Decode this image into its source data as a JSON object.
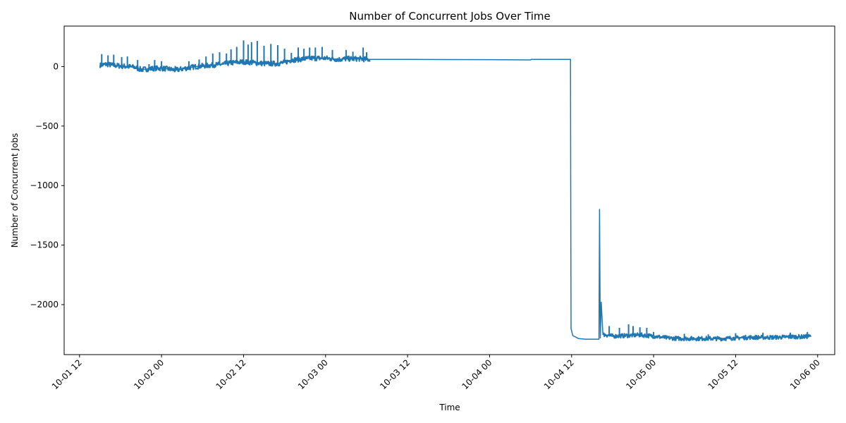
{
  "chart_data": {
    "type": "line",
    "title": "Number of Concurrent Jobs Over Time",
    "xlabel": "Time",
    "ylabel": "Number of Concurrent Jobs",
    "grid": false,
    "legend": "none",
    "color": "#1f77b4",
    "x_ticks": [
      "10-01 12",
      "10-02 00",
      "10-02 12",
      "10-03 00",
      "10-03 12",
      "10-04 00",
      "10-04 12",
      "10-05 00",
      "10-05 12",
      "10-06 00"
    ],
    "y_ticks": [
      0,
      -500,
      -1000,
      -1500,
      -2000
    ],
    "y_tick_labels": [
      "0",
      "−500",
      "−1000",
      "−1500",
      "−2000"
    ],
    "xlim": [
      "2024-10-01T09:45",
      "2024-10-06T02:30"
    ],
    "ylim": [
      -2420,
      340
    ],
    "series": [
      {
        "points": [
          [
            "2024-10-01T15:00",
            10
          ],
          [
            "2024-10-01T16:00",
            20
          ],
          [
            "2024-10-01T17:00",
            10
          ],
          [
            "2024-10-01T18:00",
            5
          ],
          [
            "2024-10-01T19:00",
            0
          ],
          [
            "2024-10-01T20:00",
            -5
          ],
          [
            "2024-10-01T21:00",
            -25
          ],
          [
            "2024-10-01T22:00",
            -20
          ],
          [
            "2024-10-01T23:00",
            -15
          ],
          [
            "2024-10-02T00:00",
            -15
          ],
          [
            "2024-10-02T01:00",
            -20
          ],
          [
            "2024-10-02T02:00",
            -30
          ],
          [
            "2024-10-02T03:00",
            -20
          ],
          [
            "2024-10-02T04:00",
            -10
          ],
          [
            "2024-10-02T05:00",
            0
          ],
          [
            "2024-10-02T06:00",
            5
          ],
          [
            "2024-10-02T07:00",
            10
          ],
          [
            "2024-10-02T08:00",
            15
          ],
          [
            "2024-10-02T09:00",
            20
          ],
          [
            "2024-10-02T10:00",
            30
          ],
          [
            "2024-10-02T11:00",
            35
          ],
          [
            "2024-10-02T12:00",
            40
          ],
          [
            "2024-10-02T13:00",
            35
          ],
          [
            "2024-10-02T14:00",
            30
          ],
          [
            "2024-10-02T15:00",
            25
          ],
          [
            "2024-10-02T16:00",
            25
          ],
          [
            "2024-10-02T17:00",
            25
          ],
          [
            "2024-10-02T18:00",
            35
          ],
          [
            "2024-10-02T19:00",
            55
          ],
          [
            "2024-10-02T20:00",
            60
          ],
          [
            "2024-10-02T21:00",
            65
          ],
          [
            "2024-10-02T22:00",
            70
          ],
          [
            "2024-10-02T23:00",
            70
          ],
          [
            "2024-10-03T00:00",
            70
          ],
          [
            "2024-10-03T01:00",
            65
          ],
          [
            "2024-10-03T02:00",
            60
          ],
          [
            "2024-10-03T03:00",
            65
          ],
          [
            "2024-10-03T04:00",
            65
          ],
          [
            "2024-10-03T05:00",
            65
          ],
          [
            "2024-10-03T06:00",
            60
          ],
          [
            "2024-10-03T12:00",
            60
          ],
          [
            "2024-10-04T00:00",
            58
          ],
          [
            "2024-10-04T06:00",
            56
          ],
          [
            "2024-10-04T06:05",
            60
          ],
          [
            "2024-10-04T11:50",
            60
          ],
          [
            "2024-10-04T11:52",
            -920
          ],
          [
            "2024-10-04T11:55",
            -2200
          ],
          [
            "2024-10-04T12:10",
            -2260
          ],
          [
            "2024-10-04T13:00",
            -2285
          ],
          [
            "2024-10-04T14:00",
            -2290
          ],
          [
            "2024-10-04T16:00",
            -2290
          ],
          [
            "2024-10-04T16:05",
            -1200
          ],
          [
            "2024-10-04T16:12",
            -2280
          ],
          [
            "2024-10-04T16:20",
            -1980
          ],
          [
            "2024-10-04T16:35",
            -2250
          ],
          [
            "2024-10-04T18:00",
            -2265
          ],
          [
            "2024-10-04T20:00",
            -2260
          ],
          [
            "2024-10-04T22:00",
            -2255
          ],
          [
            "2024-10-05T00:00",
            -2265
          ],
          [
            "2024-10-05T02:00",
            -2280
          ],
          [
            "2024-10-05T04:00",
            -2285
          ],
          [
            "2024-10-05T06:00",
            -2285
          ],
          [
            "2024-10-05T08:00",
            -2285
          ],
          [
            "2024-10-05T10:00",
            -2285
          ],
          [
            "2024-10-05T12:00",
            -2280
          ],
          [
            "2024-10-05T14:00",
            -2275
          ],
          [
            "2024-10-05T16:00",
            -2275
          ],
          [
            "2024-10-05T18:00",
            -2275
          ],
          [
            "2024-10-05T20:00",
            -2270
          ],
          [
            "2024-10-05T22:00",
            -2270
          ],
          [
            "2024-10-05T23:00",
            -2265
          ]
        ],
        "noise_segments": [
          {
            "from": "2024-10-01T15:00",
            "to": "2024-10-03T06:30",
            "amplitude": 22,
            "spikes": [
              [
                "2024-10-01T15:15",
                105
              ],
              [
                "2024-10-01T16:10",
                95
              ],
              [
                "2024-10-01T17:00",
                100
              ],
              [
                "2024-10-01T18:10",
                80
              ],
              [
                "2024-10-01T19:00",
                85
              ],
              [
                "2024-10-01T20:30",
                55
              ],
              [
                "2024-10-01T22:10",
                20
              ],
              [
                "2024-10-01T23:00",
                55
              ],
              [
                "2024-10-02T00:00",
                45
              ],
              [
                "2024-10-02T02:00",
                5
              ],
              [
                "2024-10-02T04:00",
                45
              ],
              [
                "2024-10-02T05:30",
                60
              ],
              [
                "2024-10-02T06:30",
                85
              ],
              [
                "2024-10-02T07:30",
                110
              ],
              [
                "2024-10-02T08:30",
                120
              ],
              [
                "2024-10-02T09:30",
                110
              ],
              [
                "2024-10-02T10:10",
                145
              ],
              [
                "2024-10-02T11:00",
                165
              ],
              [
                "2024-10-02T12:00",
                220
              ],
              [
                "2024-10-02T12:40",
                185
              ],
              [
                "2024-10-02T13:10",
                205
              ],
              [
                "2024-10-02T14:00",
                215
              ],
              [
                "2024-10-02T15:00",
                175
              ],
              [
                "2024-10-02T16:00",
                190
              ],
              [
                "2024-10-02T17:00",
                180
              ],
              [
                "2024-10-02T18:00",
                150
              ],
              [
                "2024-10-02T19:00",
                115
              ],
              [
                "2024-10-02T20:00",
                160
              ],
              [
                "2024-10-02T20:50",
                150
              ],
              [
                "2024-10-02T21:40",
                160
              ],
              [
                "2024-10-02T22:30",
                160
              ],
              [
                "2024-10-02T23:30",
                165
              ],
              [
                "2024-10-03T01:00",
                140
              ],
              [
                "2024-10-03T03:00",
                140
              ],
              [
                "2024-10-03T04:00",
                125
              ],
              [
                "2024-10-03T05:30",
                160
              ],
              [
                "2024-10-03T06:00",
                120
              ]
            ]
          },
          {
            "from": "2024-10-04T16:35",
            "to": "2024-10-05T23:00",
            "amplitude": 18,
            "spikes": [
              [
                "2024-10-04T17:30",
                -2180
              ],
              [
                "2024-10-04T19:00",
                -2195
              ],
              [
                "2024-10-04T20:20",
                -2165
              ],
              [
                "2024-10-04T21:00",
                -2180
              ],
              [
                "2024-10-04T22:00",
                -2190
              ],
              [
                "2024-10-04T23:00",
                -2195
              ],
              [
                "2024-10-05T00:00",
                -2230
              ],
              [
                "2024-10-05T04:30",
                -2245
              ],
              [
                "2024-10-05T08:00",
                -2250
              ],
              [
                "2024-10-05T12:00",
                -2240
              ],
              [
                "2024-10-05T16:00",
                -2235
              ],
              [
                "2024-10-05T20:00",
                -2235
              ],
              [
                "2024-10-05T22:30",
                -2230
              ]
            ]
          }
        ]
      }
    ]
  }
}
